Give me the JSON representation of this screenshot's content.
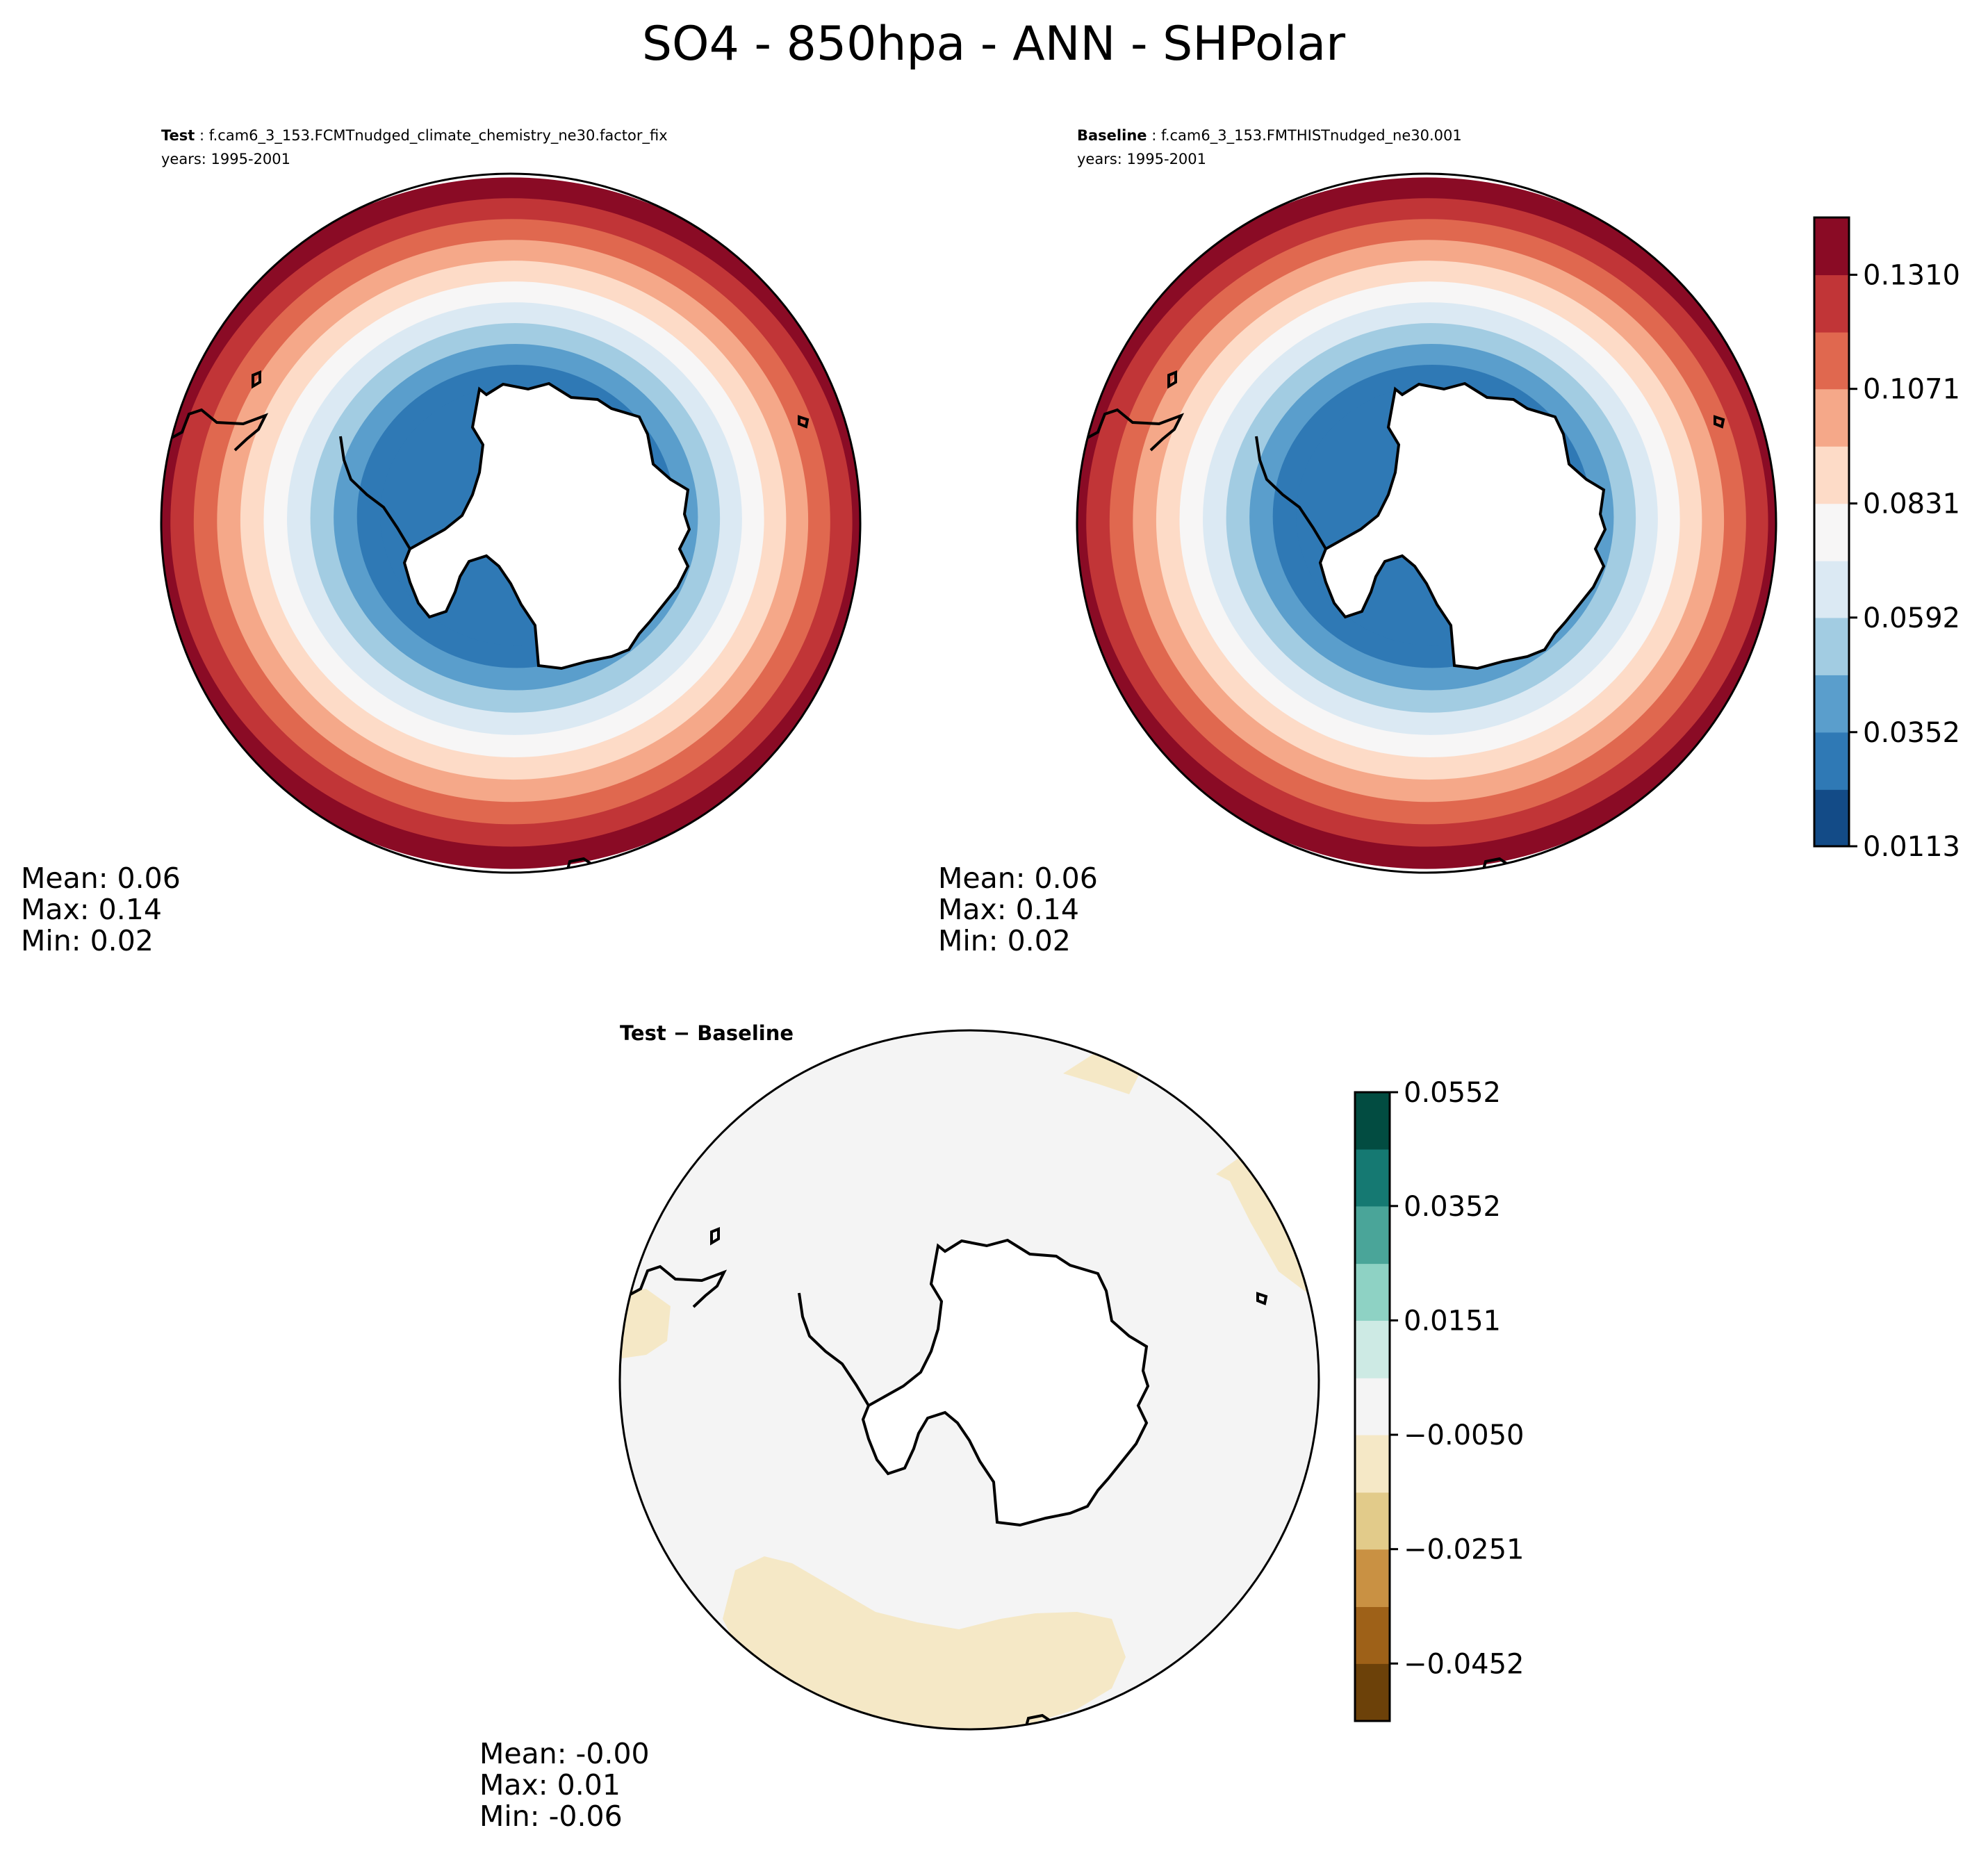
{
  "chart_data": {
    "title": "SO4 - 850hpa - ANN - SHPolar",
    "panels": [
      {
        "id": "test",
        "type": "heatmap",
        "projection": "south-polar-stereographic",
        "label": "Test",
        "case": "f.cam6_3_153.FCMTnudged_climate_chemistry_ne30.factor_fix",
        "years": "years: 1995-2001",
        "stats": {
          "mean": "Mean:  0.06",
          "max": "Max:  0.14",
          "min": "Min:  0.02"
        },
        "ring_values": [
          0.025,
          0.03,
          0.045,
          0.055,
          0.065,
          0.075,
          0.09,
          0.1,
          0.115,
          0.13,
          0.14
        ]
      },
      {
        "id": "baseline",
        "type": "heatmap",
        "projection": "south-polar-stereographic",
        "label": "Baseline",
        "case": "f.cam6_3_153.FMTHISTnudged_ne30.001",
        "years": "years: 1995-2001",
        "stats": {
          "mean": "Mean:  0.06",
          "max": "Max:  0.14",
          "min": "Min:  0.02"
        },
        "ring_values": [
          0.025,
          0.03,
          0.045,
          0.055,
          0.065,
          0.075,
          0.09,
          0.1,
          0.115,
          0.13,
          0.14
        ]
      },
      {
        "id": "diff",
        "type": "heatmap",
        "projection": "south-polar-stereographic",
        "title": "Test − Baseline",
        "stats": {
          "mean": "Mean: -0.00",
          "max": "Max:  0.01",
          "min": "Min: -0.06"
        },
        "background_value": 0.0,
        "patch_value": -0.01
      }
    ],
    "colorbar_main": {
      "levels": [
        0.0113,
        0.0232,
        0.0352,
        0.0472,
        0.0592,
        0.0711,
        0.0831,
        0.0951,
        0.1071,
        0.119,
        0.131,
        0.143
      ],
      "colors": [
        "#134b87",
        "#2f79b5",
        "#5a9ecc",
        "#a2cce2",
        "#dbe9f3",
        "#f7f6f6",
        "#fddbc7",
        "#f5a889",
        "#e0684f",
        "#c13537",
        "#8a0b25"
      ],
      "tick_labels": [
        "0.0113",
        "0.0352",
        "0.0592",
        "0.0831",
        "0.1071",
        "0.1310"
      ],
      "tick_values": [
        0.0113,
        0.0352,
        0.0592,
        0.0831,
        0.1071,
        0.131
      ]
    },
    "colorbar_diff": {
      "levels": [
        -0.0553,
        -0.0452,
        -0.0352,
        -0.0251,
        -0.0151,
        -0.005,
        0.005,
        0.0151,
        0.0251,
        0.0352,
        0.0452,
        0.0552
      ],
      "colors": [
        "#6c4109",
        "#9e6118",
        "#c99143",
        "#e2cb8a",
        "#f5e8c6",
        "#f4f4f4",
        "#cdeae4",
        "#8ed2c4",
        "#4aa599",
        "#157972",
        "#024c41"
      ],
      "tick_labels": [
        "−0.0452",
        "−0.0251",
        "−0.0050",
        "0.0151",
        "0.0352",
        "0.0552"
      ],
      "tick_values": [
        -0.0452,
        -0.0251,
        -0.005,
        0.0151,
        0.0352,
        0.0552
      ]
    }
  }
}
